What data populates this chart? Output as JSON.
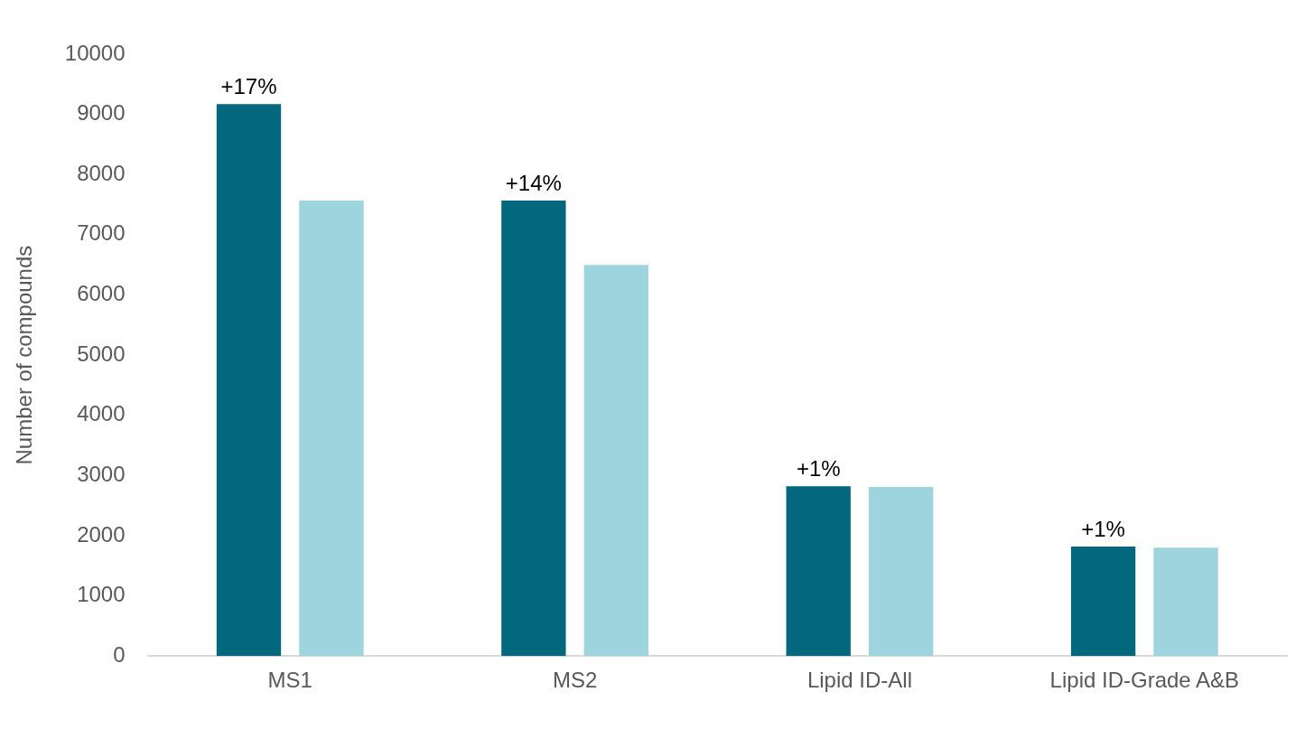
{
  "chart_data": {
    "type": "bar",
    "ylabel": "Number of compounds",
    "categories": [
      "MS1",
      "MS2",
      "Lipid ID-All",
      "Lipid ID-Grade A&B"
    ],
    "series": [
      {
        "color": "#03677d",
        "values": [
          9170,
          7570,
          2820,
          1820
        ]
      },
      {
        "color": "#9dd4dd",
        "values": [
          7570,
          6500,
          2810,
          1800
        ]
      }
    ],
    "ylim": [
      0,
      10000
    ],
    "yticks": [
      0,
      1000,
      2000,
      3000,
      4000,
      5000,
      6000,
      7000,
      8000,
      9000,
      10000
    ],
    "grid": false,
    "legend": false,
    "annotations": [
      "+17%",
      "+14%",
      "+1%",
      "+1%"
    ]
  }
}
